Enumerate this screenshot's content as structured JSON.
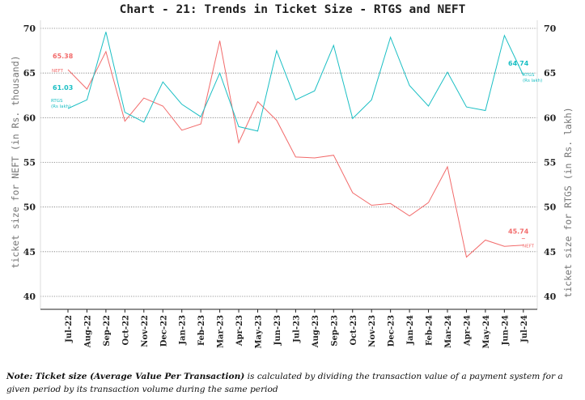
{
  "chart_data": {
    "type": "line",
    "title": "Chart - 21: Trends in Ticket Size - RTGS and NEFT",
    "ylabel_left": "ticket size for NEFT (in Rs. thousand)",
    "ylabel_right": "ticket size for RTGS (in Rs. lakh)",
    "ylim": [
      40,
      70
    ],
    "yticks": [
      "40",
      "45",
      "50",
      "55",
      "60",
      "65",
      "70"
    ],
    "grid": true,
    "categories": [
      "Jul-22",
      "Aug-22",
      "Sep-22",
      "Oct-22",
      "Nov-22",
      "Dec-22",
      "Jan-23",
      "Feb-23",
      "Mar-23",
      "Apr-23",
      "May-23",
      "Jun-23",
      "Jul-23",
      "Aug-23",
      "Sep-23",
      "Oct-23",
      "Nov-23",
      "Dec-23",
      "Jan-24",
      "Feb-24",
      "Mar-24",
      "Apr-24",
      "May-24",
      "Jun-24",
      "Jul-24"
    ],
    "series": [
      {
        "name": "NEFT",
        "color": "#f26b6b",
        "values": [
          65.38,
          63.2,
          67.4,
          59.6,
          62.2,
          61.3,
          58.6,
          59.3,
          68.6,
          57.2,
          61.8,
          59.7,
          55.6,
          55.5,
          55.8,
          51.6,
          50.2,
          50.4,
          49.0,
          50.5,
          54.5,
          44.4,
          46.3,
          45.6,
          45.74
        ],
        "series_label": "NEFT",
        "start_label": "65.38",
        "end_label": "45.74"
      },
      {
        "name": "RTGS",
        "color": "#1bbfc4",
        "values": [
          61.03,
          62.0,
          69.6,
          60.6,
          59.5,
          64.0,
          61.5,
          60.1,
          65.0,
          59.0,
          58.5,
          67.5,
          62.0,
          63.0,
          68.1,
          59.9,
          62.0,
          69.0,
          63.6,
          61.3,
          65.1,
          61.2,
          60.8,
          69.2,
          64.74
        ],
        "series_label": "RTGS (Rs lakh)",
        "start_label": "61.03",
        "end_label": "64.74"
      }
    ],
    "note_prefix": "Note:",
    "note_bold": "Ticket size (Average Value Per Transaction)",
    "note_rest": " is calculated by dividing the transaction value of a payment system for a given period by its transaction volume during the same period"
  }
}
